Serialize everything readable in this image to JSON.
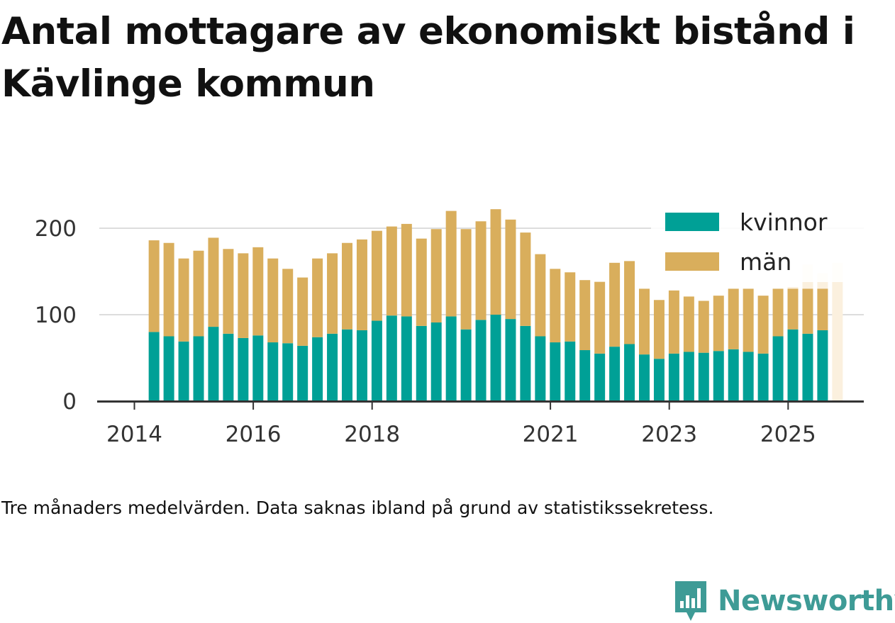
{
  "title": "Antal mottagare av ekonomiskt bistånd i Kävlinge kommun",
  "caption": "Tre månaders medelvärden. Data saknas ibland på grund av statistikssekretess.",
  "brand": "Newsworthy",
  "colors": {
    "kvinnor": "#00a096",
    "man": "#d9ae5c",
    "axis": "#333333",
    "grid": "#dddddd",
    "brand": "#3e9b96"
  },
  "chart_data": {
    "type": "bar",
    "stacked": true,
    "title": "Antal mottagare av ekonomiskt bistånd i Kävlinge kommun",
    "xlabel": "",
    "ylabel": "",
    "ylim": [
      0,
      230
    ],
    "yticks": [
      0,
      100,
      200
    ],
    "xlim": [
      2014,
      2026.25
    ],
    "xticks": [
      2014,
      2016,
      2018,
      2021,
      2023,
      2025
    ],
    "xtick_labels": [
      "2014",
      "2016",
      "2018",
      "2021",
      "2023",
      "2025"
    ],
    "grid": true,
    "legend": "top-right",
    "x": [
      2014.33,
      2014.58,
      2014.83,
      2015.08,
      2015.33,
      2015.58,
      2015.83,
      2016.08,
      2016.33,
      2016.58,
      2016.83,
      2017.08,
      2017.33,
      2017.58,
      2017.83,
      2018.08,
      2018.33,
      2018.58,
      2018.83,
      2019.08,
      2019.33,
      2019.58,
      2019.83,
      2020.08,
      2020.33,
      2020.58,
      2020.83,
      2021.08,
      2021.33,
      2021.58,
      2021.83,
      2022.08,
      2022.33,
      2022.58,
      2022.83,
      2023.08,
      2023.33,
      2023.58,
      2023.83,
      2024.08,
      2024.33,
      2024.58,
      2024.83,
      2025.08,
      2025.33,
      2025.58
    ],
    "series": [
      {
        "name": "kvinnor",
        "values": [
          80,
          75,
          69,
          75,
          86,
          78,
          73,
          76,
          68,
          67,
          64,
          74,
          78,
          83,
          82,
          93,
          99,
          98,
          87,
          91,
          98,
          83,
          94,
          100,
          95,
          87,
          75,
          68,
          69,
          59,
          55,
          63,
          66,
          54,
          49,
          55,
          57,
          56,
          58,
          60,
          57,
          55,
          75,
          83,
          78,
          82
        ]
      },
      {
        "name": "män",
        "values": [
          106,
          108,
          96,
          99,
          103,
          98,
          98,
          102,
          97,
          86,
          79,
          91,
          93,
          100,
          105,
          104,
          103,
          107,
          101,
          108,
          122,
          116,
          114,
          122,
          115,
          108,
          95,
          85,
          80,
          81,
          83,
          97,
          96,
          76,
          68,
          73,
          64,
          60,
          64,
          70,
          73,
          67,
          55,
          47,
          52,
          48
        ]
      }
    ],
    "faded_totals": [
      {
        "x": 2025.08,
        "value": 132
      },
      {
        "x": 2025.33,
        "value": 158
      },
      {
        "x": 2025.58,
        "value": 148
      },
      {
        "x": 2025.83,
        "value": 160
      }
    ]
  }
}
